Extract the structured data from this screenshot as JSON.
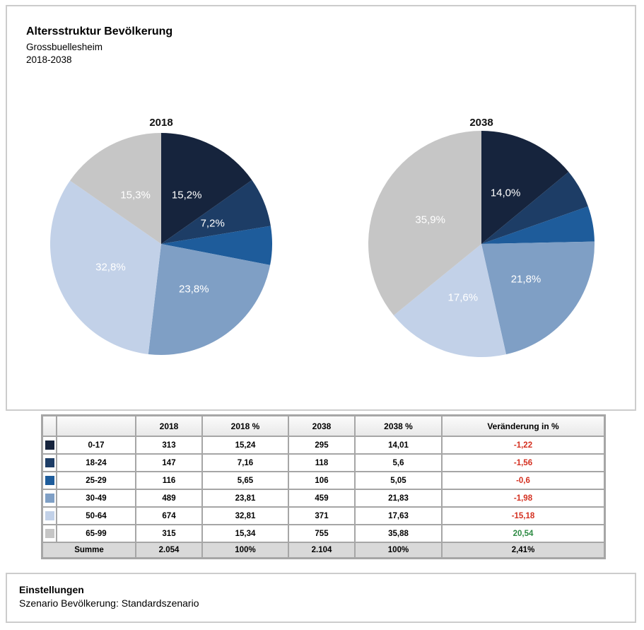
{
  "page": {
    "title": "Altersstruktur Bevölkerung",
    "subtitle_location": "Grossbuellesheim",
    "subtitle_period": "2018-2038"
  },
  "chart_data": [
    {
      "type": "pie",
      "title": "2018",
      "legend_position": "none",
      "slices": [
        {
          "category": "0-17",
          "value": 15.24,
          "label": "15,2%",
          "color": "#16243d"
        },
        {
          "category": "18-24",
          "value": 7.16,
          "label": "7,2%",
          "color": "#1d3d66"
        },
        {
          "category": "25-29",
          "value": 5.65,
          "label": "",
          "color": "#1e5c9b"
        },
        {
          "category": "30-49",
          "value": 23.81,
          "label": "23,8%",
          "color": "#7f9fc5"
        },
        {
          "category": "50-64",
          "value": 32.81,
          "label": "32,8%",
          "color": "#c2d1e8"
        },
        {
          "category": "65-99",
          "value": 15.34,
          "label": "15,3%",
          "color": "#c6c6c6"
        }
      ]
    },
    {
      "type": "pie",
      "title": "2038",
      "legend_position": "none",
      "slices": [
        {
          "category": "0-17",
          "value": 14.01,
          "label": "14,0%",
          "color": "#16243d"
        },
        {
          "category": "18-24",
          "value": 5.6,
          "label": "",
          "color": "#1d3d66"
        },
        {
          "category": "25-29",
          "value": 5.05,
          "label": "",
          "color": "#1e5c9b"
        },
        {
          "category": "30-49",
          "value": 21.83,
          "label": "21,8%",
          "color": "#7f9fc5"
        },
        {
          "category": "50-64",
          "value": 17.63,
          "label": "17,6%",
          "color": "#c2d1e8"
        },
        {
          "category": "65-99",
          "value": 35.88,
          "label": "35,9%",
          "color": "#c6c6c6"
        }
      ]
    }
  ],
  "table": {
    "headers": [
      "",
      "",
      "2018",
      "2018 %",
      "2038",
      "2038 %",
      "Veränderung in %"
    ],
    "rows": [
      {
        "color": "#16243d",
        "label": "0-17",
        "v2018": "313",
        "p2018": "15,24",
        "v2038": "295",
        "p2038": "14,01",
        "change": "-1,22",
        "trend": "down"
      },
      {
        "color": "#1d3d66",
        "label": "18-24",
        "v2018": "147",
        "p2018": "7,16",
        "v2038": "118",
        "p2038": "5,6",
        "change": "-1,56",
        "trend": "down"
      },
      {
        "color": "#1e5c9b",
        "label": "25-29",
        "v2018": "116",
        "p2018": "5,65",
        "v2038": "106",
        "p2038": "5,05",
        "change": "-0,6",
        "trend": "down"
      },
      {
        "color": "#7f9fc5",
        "label": "30-49",
        "v2018": "489",
        "p2018": "23,81",
        "v2038": "459",
        "p2038": "21,83",
        "change": "-1,98",
        "trend": "down"
      },
      {
        "color": "#c2d1e8",
        "label": "50-64",
        "v2018": "674",
        "p2018": "32,81",
        "v2038": "371",
        "p2038": "17,63",
        "change": "-15,18",
        "trend": "down"
      },
      {
        "color": "#c6c6c6",
        "label": "65-99",
        "v2018": "315",
        "p2018": "15,34",
        "v2038": "755",
        "p2038": "35,88",
        "change": "20,54",
        "trend": "up"
      }
    ],
    "summary": {
      "label": "Summe",
      "v2018": "2.054",
      "p2018": "100%",
      "v2038": "2.104",
      "p2038": "100%",
      "change": "2,41%"
    }
  },
  "settings": {
    "heading": "Einstellungen",
    "scenario": "Szenario Bevölkerung: Standardszenario"
  },
  "colors": {
    "negative": "#d42f1f",
    "positive": "#2e8b44",
    "panel_border": "#cccccc",
    "table_border": "#a6a6a6",
    "summary_row_bg": "#d9d9d9"
  }
}
